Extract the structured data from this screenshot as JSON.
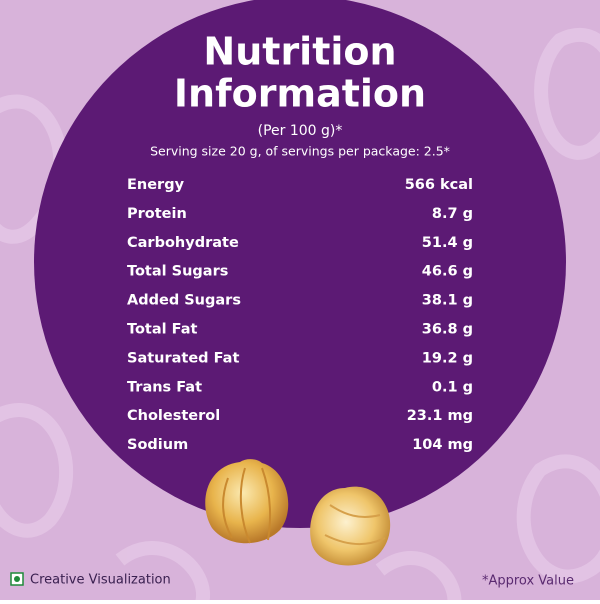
{
  "header": {
    "title_lines": [
      "Nutrition",
      "Information"
    ],
    "basis": "(Per 100 g)*",
    "serving": "Serving size 20 g, of servings per package: 2.5*"
  },
  "table": {
    "rows": [
      [
        "Energy",
        "566 kcal"
      ],
      [
        "Protein",
        "8.7 g"
      ],
      [
        "Carbohydrate",
        "51.4 g"
      ],
      [
        "Total Sugars",
        "46.6 g"
      ],
      [
        "Added Sugars",
        "38.1 g"
      ],
      [
        "Total Fat",
        "36.8 g"
      ],
      [
        "Saturated Fat",
        "19.2 g"
      ],
      [
        "Trans Fat",
        "0.1 g"
      ],
      [
        "Cholesterol",
        "23.1 mg"
      ],
      [
        "Sodium",
        "104 mg"
      ]
    ]
  },
  "footer": {
    "left": "Creative Visualization",
    "right": "*Approx Value"
  }
}
